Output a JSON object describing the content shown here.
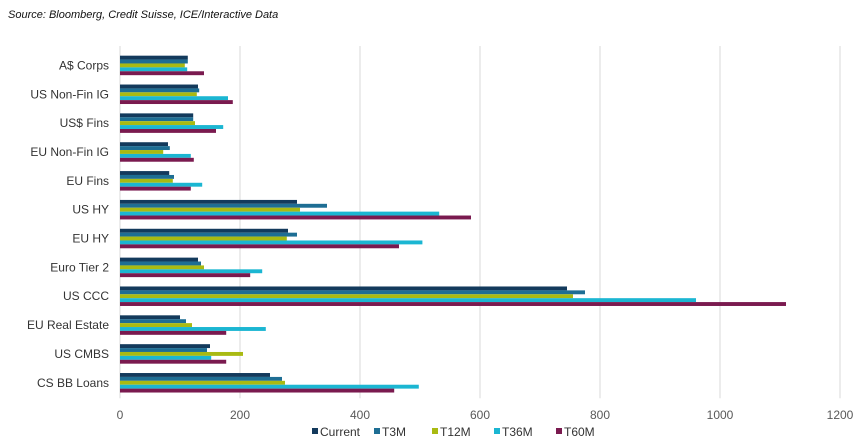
{
  "source_note": "Source: Bloomberg, Credit Suisse, ICE/Interactive Data",
  "colors": {
    "Current": "#133a5c",
    "T3M": "#1e6e94",
    "T12M": "#a9ba12",
    "T36M": "#1bb6d2",
    "T60M": "#7a1a4f",
    "grid": "#d9d9d9",
    "axis_text": "#595959"
  },
  "chart_data": {
    "type": "bar",
    "orientation": "horizontal",
    "title": "",
    "xlabel": "",
    "ylabel": "",
    "xlim": [
      0,
      1200
    ],
    "xticks": [
      0,
      200,
      400,
      600,
      800,
      1000,
      1200
    ],
    "grid": "vertical",
    "legend_position": "bottom",
    "categories": [
      "A$ Corps",
      "US Non-Fin IG",
      "US$ Fins",
      "EU Non-Fin IG",
      "EU Fins",
      "US HY",
      "EU HY",
      "Euro Tier 2",
      "US CCC",
      "EU Real Estate",
      "US CMBS",
      "CS BB Loans"
    ],
    "series": [
      {
        "name": "Current",
        "values": [
          113,
          130,
          122,
          80,
          82,
          295,
          280,
          130,
          745,
          100,
          150,
          250
        ]
      },
      {
        "name": "T3M",
        "values": [
          113,
          132,
          122,
          83,
          90,
          345,
          295,
          135,
          775,
          110,
          145,
          270
        ]
      },
      {
        "name": "T12M",
        "values": [
          108,
          128,
          125,
          72,
          88,
          300,
          278,
          140,
          755,
          120,
          205,
          275
        ]
      },
      {
        "name": "T36M",
        "values": [
          112,
          180,
          172,
          118,
          137,
          532,
          504,
          237,
          960,
          243,
          152,
          498
        ]
      },
      {
        "name": "T60M",
        "values": [
          140,
          188,
          160,
          123,
          118,
          585,
          465,
          217,
          1110,
          177,
          177,
          457
        ]
      }
    ]
  }
}
